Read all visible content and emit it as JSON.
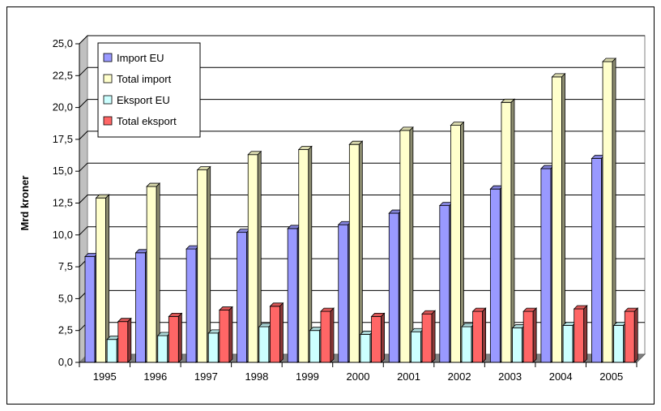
{
  "chart_data": {
    "type": "bar",
    "title": "",
    "xlabel": "",
    "ylabel": "Mrd kroner",
    "ylim": [
      0,
      25
    ],
    "yticks": [
      "0,0",
      "2,5",
      "5,0",
      "7,5",
      "10,0",
      "12,5",
      "15,0",
      "17,5",
      "20,0",
      "22,5",
      "25,0"
    ],
    "grid": true,
    "legend_position": "top-left",
    "categories": [
      "1995",
      "1996",
      "1997",
      "1998",
      "1999",
      "2000",
      "2001",
      "2002",
      "2003",
      "2004",
      "2005"
    ],
    "series": [
      {
        "name": "Import EU",
        "color": "#9999ff",
        "values": [
          8.3,
          8.6,
          8.9,
          10.2,
          10.5,
          10.8,
          11.7,
          12.3,
          13.6,
          15.2,
          16.0
        ]
      },
      {
        "name": "Total import",
        "color": "#ffffcc",
        "values": [
          12.9,
          13.8,
          15.1,
          16.3,
          16.7,
          17.1,
          18.2,
          18.6,
          20.4,
          22.4,
          23.6
        ]
      },
      {
        "name": "Eksport EU",
        "color": "#ccffff",
        "values": [
          1.8,
          2.1,
          2.3,
          2.8,
          2.5,
          2.2,
          2.4,
          2.8,
          2.7,
          2.9,
          2.9
        ]
      },
      {
        "name": "Total eksport",
        "color": "#ff6666",
        "values": [
          3.2,
          3.6,
          4.1,
          4.4,
          4.0,
          3.6,
          3.8,
          4.0,
          4.0,
          4.2,
          4.0
        ]
      }
    ]
  }
}
